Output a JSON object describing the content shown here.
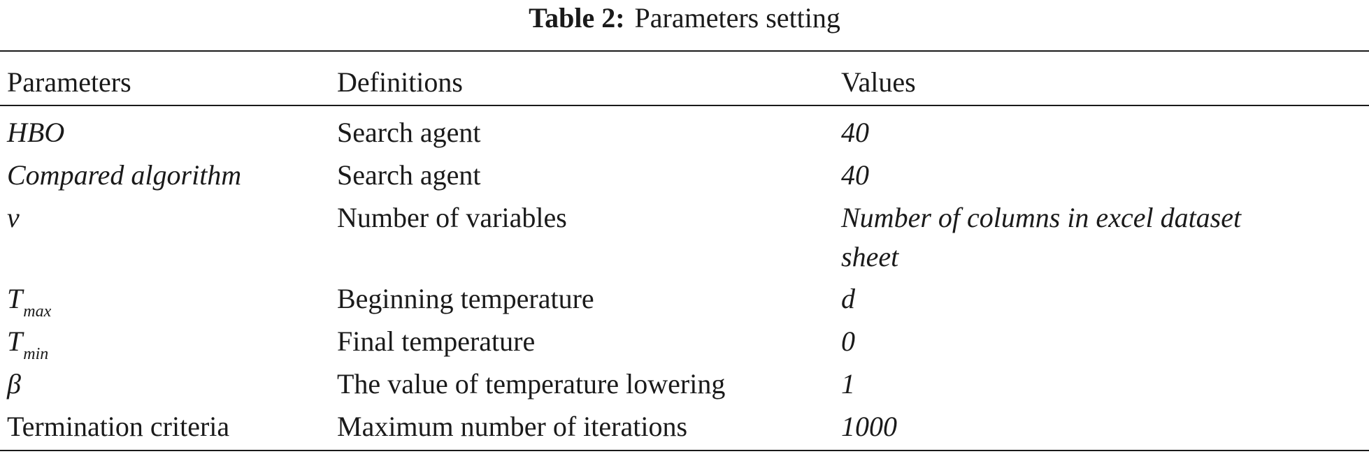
{
  "caption": {
    "label": "Table 2:",
    "title": "Parameters setting"
  },
  "table": {
    "headers": [
      "Parameters",
      "Definitions",
      "Values"
    ],
    "rows": [
      {
        "parameter": "HBO",
        "definition": "Search agent",
        "value": "40"
      },
      {
        "parameter": "Compared algorithm",
        "definition": "Search agent",
        "value": "40"
      },
      {
        "parameter": "ν",
        "definition": "Number of variables",
        "value_line1": "Number of columns in excel dataset",
        "value_line2": "sheet"
      },
      {
        "parameter_base": "T",
        "parameter_sub": "max",
        "definition": "Beginning temperature",
        "value": "d"
      },
      {
        "parameter_base": "T",
        "parameter_sub": "min",
        "definition": "Final temperature",
        "value": "0"
      },
      {
        "parameter": "β",
        "definition": "The value of temperature lowering",
        "value": "1"
      },
      {
        "parameter": "Termination criteria",
        "definition": "Maximum number of iterations",
        "value": "1000"
      }
    ]
  }
}
